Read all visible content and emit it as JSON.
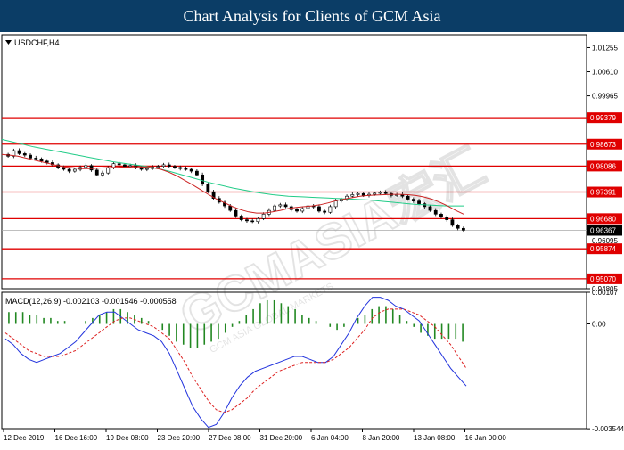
{
  "header": {
    "title": "Chart Analysis for Clients of GCM Asia"
  },
  "symbol_label": "USDCHF,H4",
  "watermark": "GCMASIA宏汇",
  "watermark_sub": "GCM ASIA GLOBAL MARKETS",
  "colors": {
    "header_bg": "#0b3d66",
    "price_candle": "#000000",
    "ma_fast": "#cc2222",
    "ma_slow": "#22cc88",
    "level_line": "#e00000",
    "macd_hist": "#228822",
    "macd_main": "#2233dd",
    "macd_signal": "#dd2222"
  },
  "chart_data": [
    {
      "type": "candlestick",
      "symbol": "USDCHF",
      "timeframe": "H4",
      "ylim": [
        0.94805,
        1.016
      ],
      "y_ticks": [
        "1.01255",
        "1.00610",
        "0.99965",
        "0.94805"
      ],
      "grey_tick": "0.96095",
      "x_labels": [
        "12 Dec 2019",
        "16 Dec 16:00",
        "19 Dec 08:00",
        "23 Dec 20:00",
        "27 Dec 08:00",
        "31 Dec 20:00",
        "6 Jan 04:00",
        "8 Jan 20:00",
        "13 Jan 08:00",
        "16 Jan 00:00"
      ],
      "levels": [
        {
          "label": "0.99379",
          "value": 0.99379
        },
        {
          "label": "0.98673",
          "value": 0.98673
        },
        {
          "label": "0.98086",
          "value": 0.98086
        },
        {
          "label": "0.97391",
          "value": 0.97391
        },
        {
          "label": "0.96680",
          "value": 0.9668
        },
        {
          "label": "0.95874",
          "value": 0.95874
        },
        {
          "label": "0.95070",
          "value": 0.9507
        }
      ],
      "current_price": {
        "label": "0.96367",
        "value": 0.96367
      },
      "close_series": [
        0.9835,
        0.985,
        0.9842,
        0.9838,
        0.983,
        0.9828,
        0.9822,
        0.9818,
        0.9812,
        0.9805,
        0.98,
        0.9795,
        0.98,
        0.9805,
        0.981,
        0.9798,
        0.9785,
        0.979,
        0.9805,
        0.9815,
        0.9812,
        0.9808,
        0.981,
        0.9805,
        0.98,
        0.9802,
        0.9806,
        0.9808,
        0.9812,
        0.9808,
        0.9805,
        0.9802,
        0.98,
        0.9795,
        0.9785,
        0.976,
        0.974,
        0.9722,
        0.9712,
        0.9702,
        0.969,
        0.9675,
        0.9665,
        0.9662,
        0.966,
        0.9668,
        0.968,
        0.969,
        0.9702,
        0.9705,
        0.97,
        0.9692,
        0.9688,
        0.9695,
        0.9702,
        0.97,
        0.9688,
        0.9685,
        0.97,
        0.9715,
        0.972,
        0.9728,
        0.9732,
        0.9735,
        0.973,
        0.9733,
        0.9736,
        0.9738,
        0.9735,
        0.973,
        0.9732,
        0.9728,
        0.972,
        0.9715,
        0.9708,
        0.97,
        0.969,
        0.968,
        0.9672,
        0.9665,
        0.965,
        0.9642,
        0.9637
      ],
      "ma_fast": [
        0.984,
        0.9838,
        0.9835,
        0.983,
        0.9825,
        0.982,
        0.9815,
        0.981,
        0.9806,
        0.9804,
        0.9802,
        0.9802,
        0.9803,
        0.9804,
        0.9805,
        0.9806,
        0.9806,
        0.9807,
        0.9806,
        0.9804,
        0.98,
        0.9792,
        0.9782,
        0.977,
        0.9758,
        0.9745,
        0.9732,
        0.972,
        0.971,
        0.97,
        0.9692,
        0.9686,
        0.9683,
        0.9683,
        0.9686,
        0.969,
        0.9695,
        0.9698,
        0.97,
        0.9702,
        0.9705,
        0.971,
        0.9716,
        0.972,
        0.9724,
        0.9728,
        0.973,
        0.9731,
        0.9732,
        0.9733,
        0.9733,
        0.9732,
        0.973,
        0.9726,
        0.972,
        0.9712,
        0.9702,
        0.969,
        0.968
      ],
      "ma_slow": [
        0.988,
        0.9875,
        0.987,
        0.9865,
        0.986,
        0.9856,
        0.9852,
        0.9848,
        0.9844,
        0.984,
        0.9836,
        0.9832,
        0.9828,
        0.9824,
        0.982,
        0.9817,
        0.9814,
        0.9811,
        0.9808,
        0.9804,
        0.98,
        0.9795,
        0.9789,
        0.9783,
        0.9777,
        0.9771,
        0.9765,
        0.976,
        0.9755,
        0.975,
        0.9746,
        0.9742,
        0.9738,
        0.9735,
        0.9732,
        0.973,
        0.9728,
        0.9727,
        0.9726,
        0.9725,
        0.9724,
        0.9723,
        0.9722,
        0.9721,
        0.972,
        0.9719,
        0.9718,
        0.9716,
        0.9714,
        0.9712,
        0.971,
        0.9708,
        0.9706,
        0.9705,
        0.9704,
        0.9703,
        0.9702,
        0.9702,
        0.9702
      ]
    },
    {
      "type": "macd",
      "label": "MACD(12,26,9) -0.002103 -0.001546 -0.000558",
      "ylim": [
        -0.00354,
        0.00107
      ],
      "y_ticks": [
        "0.00107",
        "0.00",
        "-0.003544"
      ],
      "histogram": [
        0.0004,
        0.0004,
        0.0004,
        0.0003,
        0.0003,
        0.0002,
        0.0002,
        0.0001,
        0.0001,
        0.0,
        0.0,
        0.0001,
        0.0002,
        0.0003,
        0.0004,
        0.0005,
        0.0005,
        0.0004,
        0.0003,
        0.0002,
        0.0001,
        0.0,
        -0.0002,
        -0.0004,
        -0.0006,
        -0.0007,
        -0.0008,
        -0.0008,
        -0.0007,
        -0.0006,
        -0.0005,
        -0.0003,
        -0.0001,
        0.0001,
        0.0003,
        0.0005,
        0.0007,
        0.0008,
        0.0008,
        0.0007,
        0.0006,
        0.0005,
        0.0003,
        0.0002,
        0.0001,
        0.0,
        -0.0001,
        -0.0002,
        -0.0001,
        0.0,
        0.0002,
        0.0003,
        0.0005,
        0.0006,
        0.0006,
        0.0005,
        0.0003,
        0.0001,
        -0.0001,
        -0.0003,
        -0.0004,
        -0.0005,
        -0.0005,
        -0.0005,
        -0.0005,
        -0.0006
      ],
      "macd_main": [
        -0.0005,
        -0.0007,
        -0.001,
        -0.0012,
        -0.0013,
        -0.0012,
        -0.0011,
        -0.001,
        -0.0008,
        -0.0006,
        -0.0003,
        0.0,
        0.0003,
        0.0004,
        0.0004,
        0.0002,
        0.0,
        -0.0002,
        -0.0003,
        -0.0004,
        -0.0006,
        -0.001,
        -0.0016,
        -0.0022,
        -0.0028,
        -0.0032,
        -0.0035,
        -0.0034,
        -0.003,
        -0.0025,
        -0.0021,
        -0.0018,
        -0.0016,
        -0.0015,
        -0.0014,
        -0.0013,
        -0.0012,
        -0.0011,
        -0.0011,
        -0.0012,
        -0.0013,
        -0.0013,
        -0.0011,
        -0.0007,
        -0.0003,
        0.0002,
        0.0006,
        0.0009,
        0.0009,
        0.0008,
        0.0006,
        0.0005,
        0.0003,
        0.0001,
        -0.0003,
        -0.0007,
        -0.0011,
        -0.0015,
        -0.0018,
        -0.0021
      ],
      "signal": [
        -0.0003,
        -0.0005,
        -0.0007,
        -0.0009,
        -0.001,
        -0.0011,
        -0.0011,
        -0.0011,
        -0.001,
        -0.0009,
        -0.0007,
        -0.0005,
        -0.0003,
        -0.0001,
        0.0001,
        0.0002,
        0.0002,
        0.0001,
        0.0,
        -0.0001,
        -0.0003,
        -0.0005,
        -0.0009,
        -0.0013,
        -0.0018,
        -0.0022,
        -0.0026,
        -0.0029,
        -0.003,
        -0.0029,
        -0.0027,
        -0.0025,
        -0.0022,
        -0.002,
        -0.0018,
        -0.0016,
        -0.0015,
        -0.0014,
        -0.0013,
        -0.0013,
        -0.0013,
        -0.0013,
        -0.0012,
        -0.001,
        -0.0008,
        -0.0005,
        -0.0002,
        0.0002,
        0.0004,
        0.0005,
        0.0005,
        0.0005,
        0.0004,
        0.0003,
        0.0001,
        -0.0001,
        -0.0004,
        -0.0007,
        -0.0011,
        -0.0015
      ]
    }
  ]
}
